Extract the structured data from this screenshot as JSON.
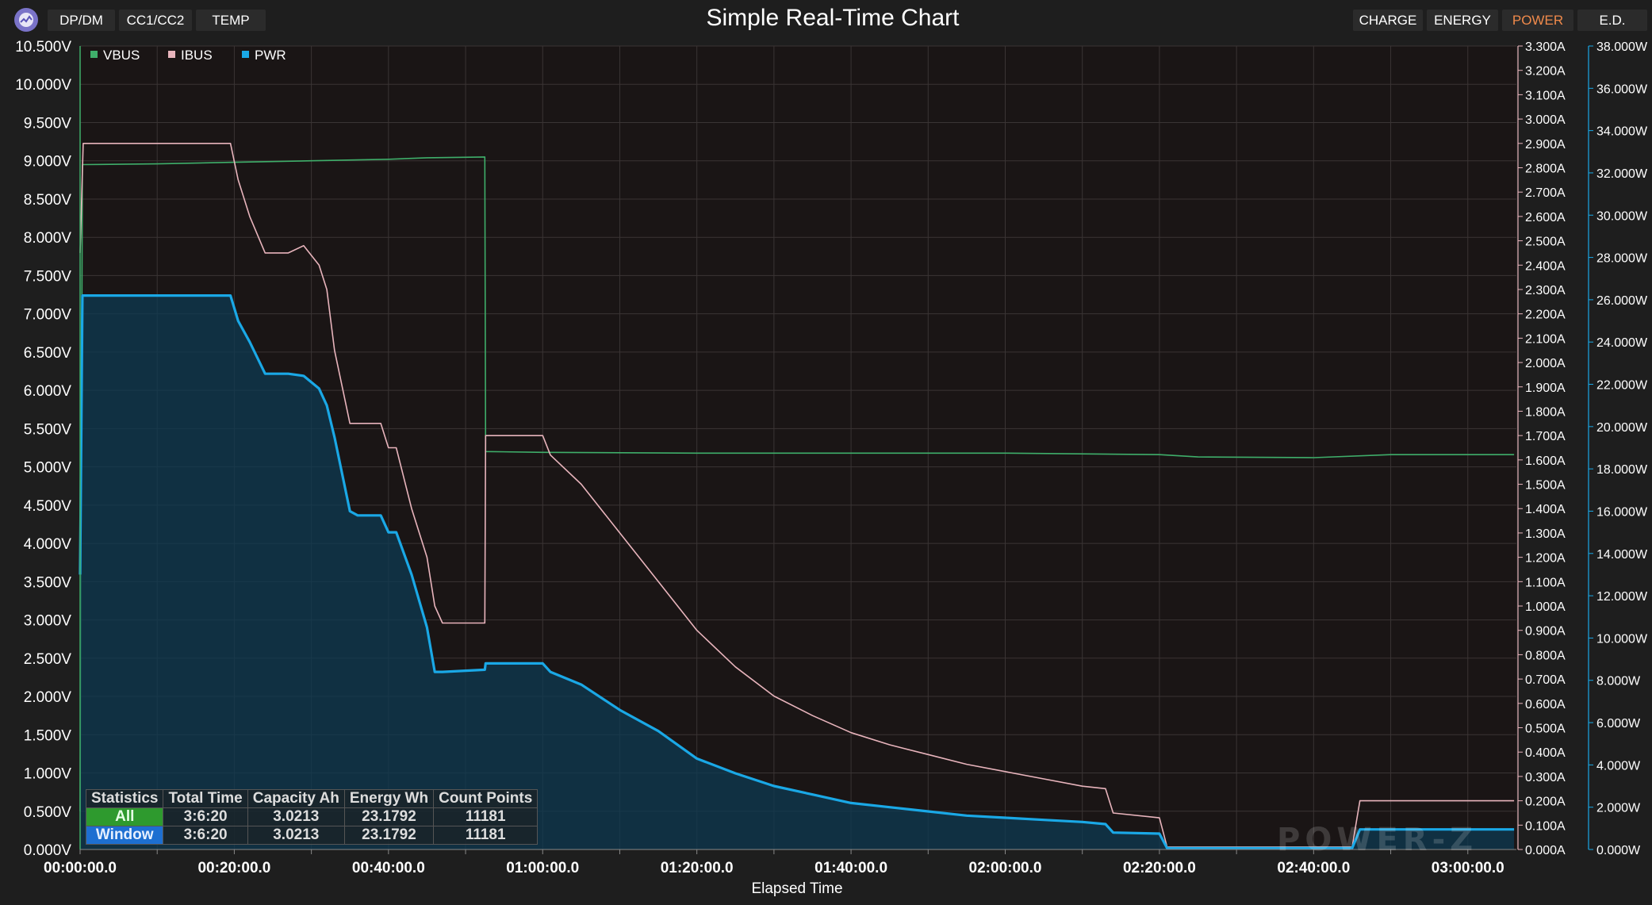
{
  "topbar": {
    "left_tabs": [
      "DP/DM",
      "CC1/CC2",
      "TEMP"
    ],
    "right_tabs": [
      {
        "label": "CHARGE",
        "color": "#ffffff"
      },
      {
        "label": "ENERGY",
        "color": "#ffffff"
      },
      {
        "label": "POWER",
        "color": "#f08a4b"
      },
      {
        "label": "E.D.",
        "color": "#ffffff"
      }
    ],
    "app_icon": "chart-app-icon"
  },
  "chart_data": {
    "type": "line",
    "title": "Simple Real-Time Chart",
    "xlabel": "Elapsed Time",
    "x_ticks": [
      "00:00:00.0",
      "00:20:00.0",
      "00:40:00.0",
      "01:00:00.0",
      "01:20:00.0",
      "01:40:00.0",
      "02:00:00.0",
      "02:20:00.0",
      "02:40:00.0",
      "03:00:00.0"
    ],
    "xlim_minutes": [
      0,
      186.3
    ],
    "legend_position": "top-left",
    "grid": true,
    "axes": {
      "left": {
        "unit": "V",
        "ylim": [
          0,
          10.5
        ],
        "ticks": [
          "0.000V",
          "0.500V",
          "1.000V",
          "1.500V",
          "2.000V",
          "2.500V",
          "3.000V",
          "3.500V",
          "4.000V",
          "4.500V",
          "5.000V",
          "5.500V",
          "6.000V",
          "6.500V",
          "7.000V",
          "7.500V",
          "8.000V",
          "8.500V",
          "9.000V",
          "9.500V",
          "10.000V",
          "10.500V"
        ]
      },
      "right1": {
        "unit": "A",
        "ylim": [
          0,
          3.3
        ],
        "ticks": [
          "0.000A",
          "0.100A",
          "0.200A",
          "0.300A",
          "0.400A",
          "0.500A",
          "0.600A",
          "0.700A",
          "0.800A",
          "0.900A",
          "1.000A",
          "1.100A",
          "1.200A",
          "1.300A",
          "1.400A",
          "1.500A",
          "1.600A",
          "1.700A",
          "1.800A",
          "1.900A",
          "2.000A",
          "2.100A",
          "2.200A",
          "2.300A",
          "2.400A",
          "2.500A",
          "2.600A",
          "2.700A",
          "2.800A",
          "2.900A",
          "3.000A",
          "3.100A",
          "3.200A",
          "3.300A"
        ]
      },
      "right2": {
        "unit": "W",
        "ylim": [
          0,
          38
        ],
        "ticks": [
          "0.000W",
          "2.000W",
          "4.000W",
          "6.000W",
          "8.000W",
          "10.000W",
          "12.000W",
          "14.000W",
          "16.000W",
          "18.000W",
          "20.000W",
          "22.000W",
          "24.000W",
          "26.000W",
          "28.000W",
          "30.000W",
          "32.000W",
          "34.000W",
          "36.000W",
          "38.000W"
        ]
      }
    },
    "series": [
      {
        "name": "VBUS",
        "axis": "left",
        "color": "#3fae6a",
        "points": [
          [
            0,
            0.5
          ],
          [
            0.3,
            8.95
          ],
          [
            10,
            8.96
          ],
          [
            20,
            8.98
          ],
          [
            30,
            9.0
          ],
          [
            40,
            9.02
          ],
          [
            45,
            9.04
          ],
          [
            52.5,
            9.05
          ],
          [
            52.6,
            5.2
          ],
          [
            60,
            5.19
          ],
          [
            80,
            5.18
          ],
          [
            100,
            5.18
          ],
          [
            120,
            5.18
          ],
          [
            140,
            5.16
          ],
          [
            145,
            5.13
          ],
          [
            160,
            5.12
          ],
          [
            170,
            5.16
          ],
          [
            186,
            5.16
          ]
        ]
      },
      {
        "name": "IBUS",
        "axis": "right1",
        "color": "#e8b4bc",
        "points": [
          [
            0,
            2.45
          ],
          [
            0.4,
            2.9
          ],
          [
            10,
            2.9
          ],
          [
            15,
            2.9
          ],
          [
            19.5,
            2.9
          ],
          [
            20.5,
            2.75
          ],
          [
            22,
            2.6
          ],
          [
            24,
            2.45
          ],
          [
            27,
            2.45
          ],
          [
            29,
            2.48
          ],
          [
            31,
            2.4
          ],
          [
            32,
            2.3
          ],
          [
            33,
            2.05
          ],
          [
            35,
            1.75
          ],
          [
            36,
            1.75
          ],
          [
            39,
            1.75
          ],
          [
            40,
            1.65
          ],
          [
            41,
            1.65
          ],
          [
            43,
            1.4
          ],
          [
            45,
            1.2
          ],
          [
            46,
            1.0
          ],
          [
            47,
            0.93
          ],
          [
            50,
            0.93
          ],
          [
            52.5,
            0.93
          ],
          [
            52.6,
            1.7
          ],
          [
            55,
            1.7
          ],
          [
            60,
            1.7
          ],
          [
            61,
            1.62
          ],
          [
            65,
            1.5
          ],
          [
            70,
            1.3
          ],
          [
            75,
            1.1
          ],
          [
            80,
            0.9
          ],
          [
            85,
            0.75
          ],
          [
            90,
            0.63
          ],
          [
            95,
            0.55
          ],
          [
            100,
            0.48
          ],
          [
            105,
            0.43
          ],
          [
            110,
            0.39
          ],
          [
            115,
            0.35
          ],
          [
            120,
            0.32
          ],
          [
            125,
            0.29
          ],
          [
            130,
            0.26
          ],
          [
            133,
            0.25
          ],
          [
            134,
            0.15
          ],
          [
            140,
            0.13
          ],
          [
            141,
            0.01
          ],
          [
            150,
            0.01
          ],
          [
            165,
            0.01
          ],
          [
            166,
            0.2
          ],
          [
            175,
            0.2
          ],
          [
            186,
            0.2
          ]
        ]
      },
      {
        "name": "PWR",
        "axis": "right2",
        "color": "#1aa8e6",
        "fill": "#0e3a52",
        "points": [
          [
            0,
            13.0
          ],
          [
            0.3,
            26.2
          ],
          [
            10,
            26.2
          ],
          [
            15,
            26.2
          ],
          [
            19.5,
            26.2
          ],
          [
            20.5,
            25.0
          ],
          [
            22,
            24.0
          ],
          [
            24,
            22.5
          ],
          [
            27,
            22.5
          ],
          [
            29,
            22.4
          ],
          [
            31,
            21.8
          ],
          [
            32,
            21.0
          ],
          [
            33,
            19.5
          ],
          [
            35,
            16.0
          ],
          [
            36,
            15.8
          ],
          [
            39,
            15.8
          ],
          [
            40,
            15.0
          ],
          [
            41,
            15.0
          ],
          [
            43,
            13.0
          ],
          [
            45,
            10.5
          ],
          [
            46,
            8.4
          ],
          [
            47,
            8.4
          ],
          [
            52.5,
            8.5
          ],
          [
            52.6,
            8.8
          ],
          [
            55,
            8.8
          ],
          [
            60,
            8.8
          ],
          [
            61,
            8.4
          ],
          [
            65,
            7.8
          ],
          [
            70,
            6.6
          ],
          [
            75,
            5.6
          ],
          [
            80,
            4.3
          ],
          [
            85,
            3.6
          ],
          [
            90,
            3.0
          ],
          [
            95,
            2.6
          ],
          [
            100,
            2.2
          ],
          [
            105,
            2.0
          ],
          [
            110,
            1.8
          ],
          [
            115,
            1.6
          ],
          [
            120,
            1.5
          ],
          [
            125,
            1.4
          ],
          [
            130,
            1.3
          ],
          [
            133,
            1.2
          ],
          [
            134,
            0.8
          ],
          [
            140,
            0.75
          ],
          [
            141,
            0.06
          ],
          [
            150,
            0.06
          ],
          [
            165,
            0.06
          ],
          [
            166,
            0.95
          ],
          [
            175,
            0.95
          ],
          [
            186,
            0.95
          ]
        ]
      }
    ]
  },
  "stats": {
    "headers": [
      "Statistics",
      "Total Time",
      "Capacity Ah",
      "Energy Wh",
      "Count Points"
    ],
    "rows": [
      {
        "label": "All",
        "total_time": "3:6:20",
        "capacity": "3.0213",
        "energy": "23.1792",
        "count": "11181"
      },
      {
        "label": "Window",
        "total_time": "3:6:20",
        "capacity": "3.0213",
        "energy": "23.1792",
        "count": "11181"
      }
    ]
  },
  "watermark": "POWER-Z"
}
